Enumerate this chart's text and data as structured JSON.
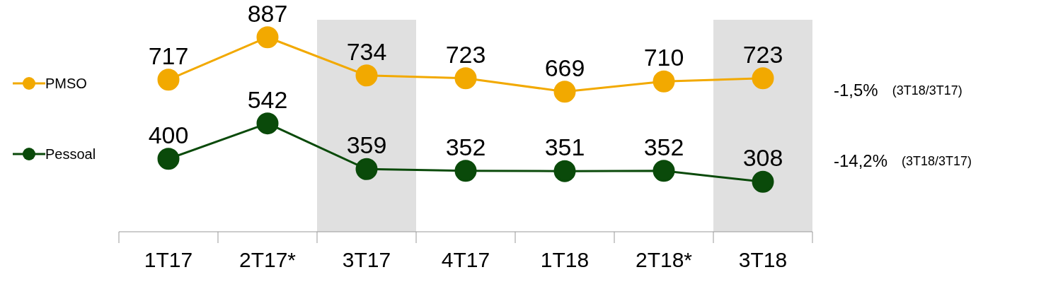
{
  "chart_data": {
    "type": "line",
    "categories": [
      "1T17",
      "2T17*",
      "3T17",
      "4T17",
      "1T18",
      "2T18*",
      "3T18"
    ],
    "series": [
      {
        "name": "PMSO",
        "color": "#f2a900",
        "values": [
          717,
          887,
          734,
          723,
          669,
          710,
          723
        ]
      },
      {
        "name": "Pessoal",
        "color": "#0a4a0a",
        "values": [
          400,
          542,
          359,
          352,
          351,
          352,
          308
        ]
      }
    ],
    "data_labels": true,
    "marker": "circle",
    "line_style": "solid",
    "legend": "left",
    "grid": false,
    "bands": [
      {
        "axis": "x",
        "from": "3T17",
        "to": "3T17",
        "color": "#e0e0e0"
      },
      {
        "axis": "x",
        "from": "3T18",
        "to": "3T18",
        "color": "#e0e0e0"
      }
    ],
    "annotations": [
      "-1,5%",
      "(3T18/3T17)",
      "-14,2%",
      "(3T18/3T17)"
    ]
  }
}
